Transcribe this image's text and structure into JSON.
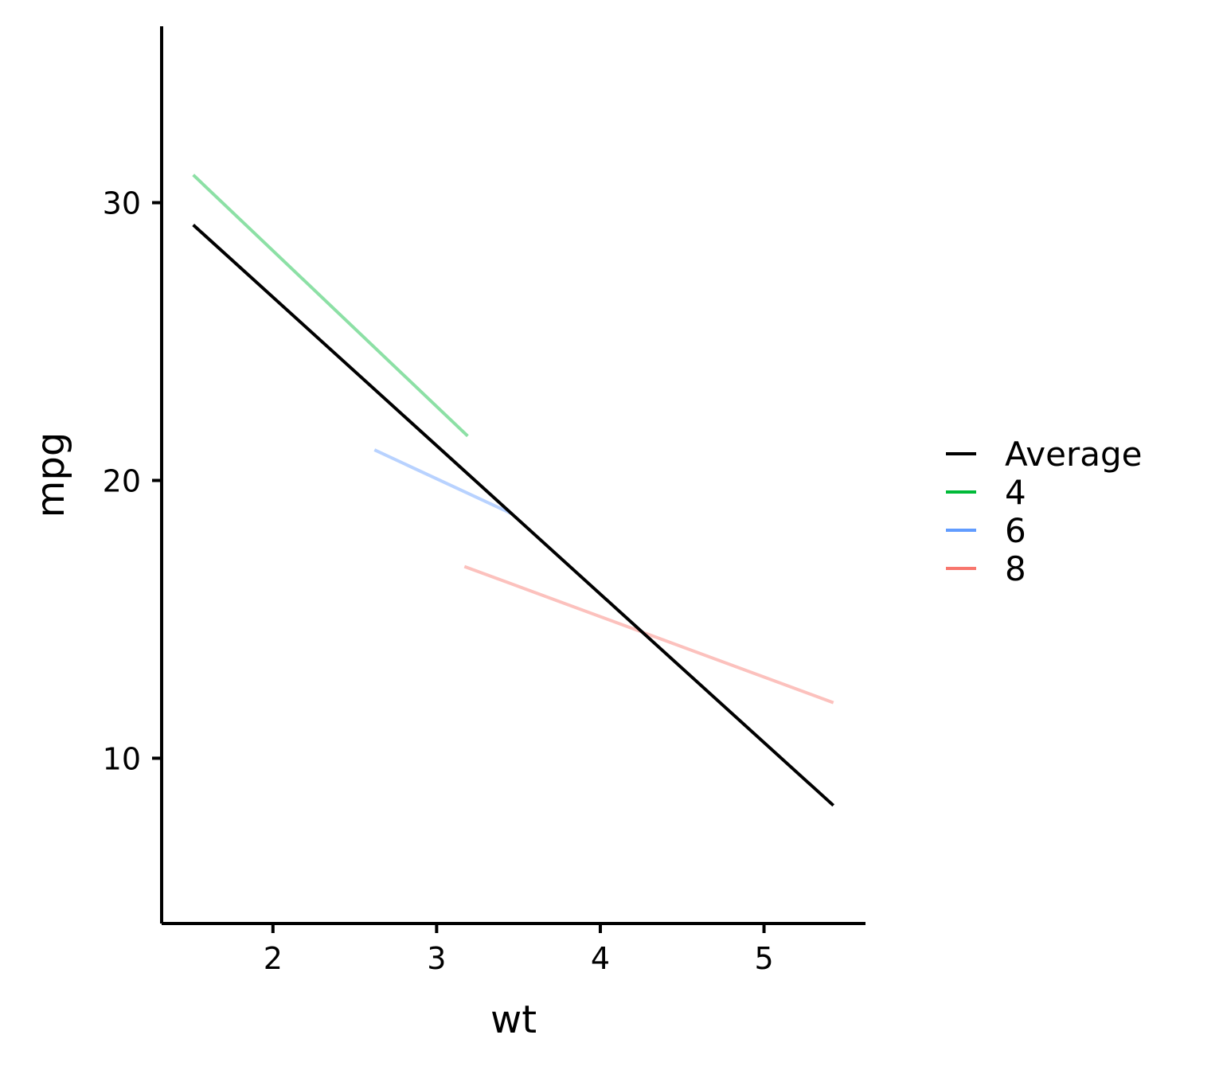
{
  "chart_data": {
    "type": "line",
    "title": "",
    "xlabel": "wt",
    "ylabel": "mpg",
    "xlim": [
      1.32,
      5.62
    ],
    "ylim": [
      4.05,
      36.35
    ],
    "x_ticks": [
      2,
      3,
      4,
      5
    ],
    "y_ticks": [
      10,
      20,
      30
    ],
    "x_tick_labels": [
      "2",
      "3",
      "4",
      "5"
    ],
    "y_tick_labels": [
      "10",
      "20",
      "30"
    ],
    "grid": false,
    "legend_position": "right",
    "series": [
      {
        "name": "Average",
        "color": "#000000",
        "opacity": 1,
        "points": [
          [
            1.513,
            29.2
          ],
          [
            5.424,
            8.3
          ]
        ]
      },
      {
        "name": "4",
        "color": "#00BA38",
        "opacity": 0.45,
        "points": [
          [
            1.513,
            31.0
          ],
          [
            3.19,
            21.6
          ]
        ]
      },
      {
        "name": "6",
        "color": "#619CFF",
        "opacity": 0.45,
        "points": [
          [
            2.62,
            21.1
          ],
          [
            3.46,
            18.8
          ]
        ]
      },
      {
        "name": "8",
        "color": "#F8766D",
        "opacity": 0.45,
        "points": [
          [
            3.17,
            16.9
          ],
          [
            5.424,
            12.0
          ]
        ]
      }
    ],
    "legend": [
      {
        "label": "Average",
        "color": "#000000"
      },
      {
        "label": "4",
        "color": "#00BA38"
      },
      {
        "label": "6",
        "color": "#619CFF"
      },
      {
        "label": "8",
        "color": "#F8766D"
      }
    ]
  }
}
